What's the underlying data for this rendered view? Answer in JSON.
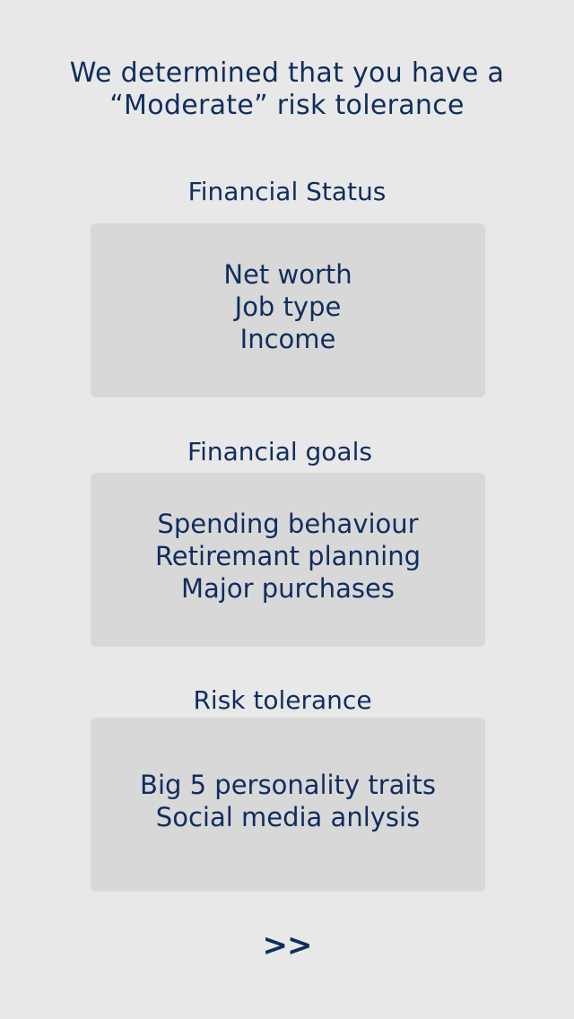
{
  "headline": {
    "line1": "We determined that you have a",
    "line2": "“Moderate” risk tolerance"
  },
  "sections": [
    {
      "title": "Financial Status",
      "items": [
        "Net worth",
        "Job type",
        "Income"
      ]
    },
    {
      "title": "Financial goals",
      "items": [
        "Spending behaviour",
        "Retiremant planning",
        "Major purchases"
      ]
    },
    {
      "title": "Risk tolerance",
      "items": [
        "Big 5 personality traits",
        "Social media anlysis"
      ]
    }
  ],
  "next_label": ">>"
}
